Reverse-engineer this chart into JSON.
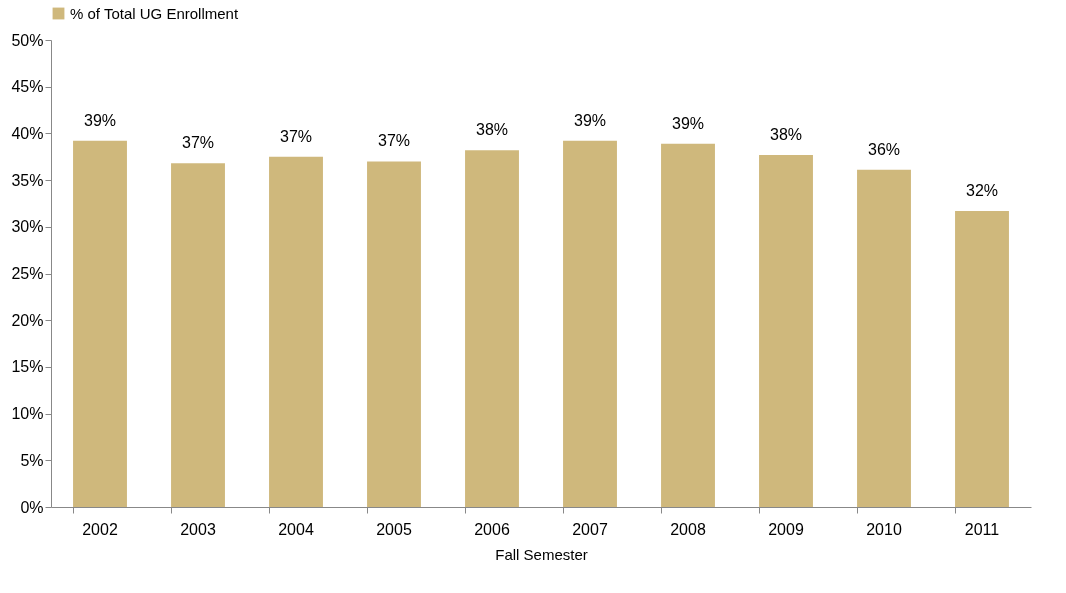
{
  "chart_data": {
    "type": "bar",
    "xlabel": "Fall Semester",
    "categories": [
      "2002",
      "2003",
      "2004",
      "2005",
      "2006",
      "2007",
      "2008",
      "2009",
      "2010",
      "2011"
    ],
    "series": [
      {
        "name": "% of Total UG Enrollment",
        "color": "#cfb87c",
        "values": [
          39.2,
          36.8,
          37.5,
          37.0,
          38.2,
          39.2,
          38.9,
          37.7,
          36.1,
          31.7
        ],
        "value_labels": [
          "39%",
          "37%",
          "37%",
          "37%",
          "38%",
          "39%",
          "39%",
          "38%",
          "36%",
          "32%"
        ]
      }
    ],
    "ylim": [
      0,
      50
    ],
    "yticks": [
      {
        "value": 0,
        "label": "0%"
      },
      {
        "value": 5,
        "label": "5%"
      },
      {
        "value": 10,
        "label": "10%"
      },
      {
        "value": 15,
        "label": "15%"
      },
      {
        "value": 20,
        "label": "20%"
      },
      {
        "value": 25,
        "label": "25%"
      },
      {
        "value": 30,
        "label": "30%"
      },
      {
        "value": 35,
        "label": "35%"
      },
      {
        "value": 40,
        "label": "40%"
      },
      {
        "value": 45,
        "label": "45%"
      },
      {
        "value": 50,
        "label": "50%"
      }
    ],
    "grid": false,
    "legend": "top"
  }
}
